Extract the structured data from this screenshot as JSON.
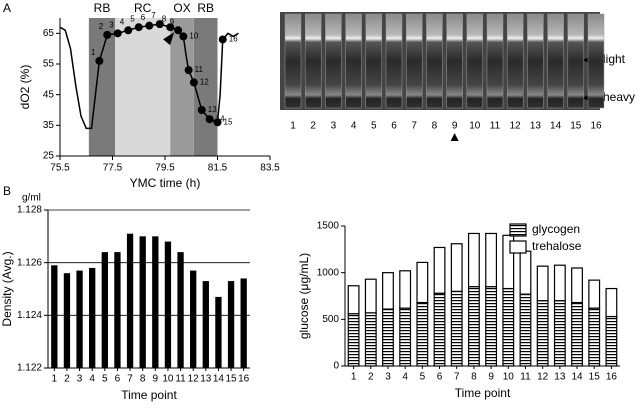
{
  "panel_labels": [
    "A",
    "B"
  ],
  "gel": {
    "lane_labels": [
      "1",
      "2",
      "3",
      "4",
      "5",
      "6",
      "7",
      "8",
      "9",
      "10",
      "11",
      "12",
      "13",
      "14",
      "15",
      "16"
    ],
    "light_label": "light",
    "heavy_label": "heavy"
  },
  "chart_data": [
    {
      "type": "line",
      "xlabel": "YMC time (h)",
      "ylabel": "dO2 (%)",
      "xlim": [
        75.5,
        83.5
      ],
      "ylim": [
        25,
        70
      ],
      "xticks": [
        75.5,
        77.5,
        79.5,
        81.5,
        83.5
      ],
      "yticks": [
        25,
        35,
        45,
        55,
        65
      ],
      "regions": [
        {
          "label": "RB",
          "start": 76.6,
          "end": 77.6,
          "color": "#7a7a7a"
        },
        {
          "label": "RC",
          "start": 77.6,
          "end": 79.7,
          "color": "#d9d9d9"
        },
        {
          "label": "OX",
          "start": 79.7,
          "end": 80.6,
          "color": "#9a9a9a"
        },
        {
          "label": "RB",
          "start": 80.6,
          "end": 81.5,
          "color": "#7a7a7a"
        }
      ],
      "series": [
        {
          "color": "#000000",
          "x": [
            75.5,
            75.7,
            75.9,
            76.1,
            76.3,
            76.5,
            76.7,
            76.85,
            77.0,
            77.3,
            77.7,
            78.1,
            78.5,
            78.9,
            79.3,
            79.7,
            80.0,
            80.2,
            80.3,
            80.4,
            80.6,
            80.9,
            81.2,
            81.5,
            81.6,
            81.7,
            81.9,
            82.1,
            82.3
          ],
          "values": [
            67,
            66,
            60,
            48,
            38,
            34,
            34,
            45,
            56,
            64.5,
            65,
            66,
            67,
            67.5,
            68,
            67,
            66,
            64,
            58,
            53,
            49,
            40,
            37,
            36,
            45,
            63,
            65,
            64,
            65
          ]
        },
        {
          "color": "#000000",
          "marker": "circle",
          "x": [
            77.0,
            77.3,
            77.7,
            78.1,
            78.5,
            78.9,
            79.3,
            79.7,
            80.0,
            80.2,
            80.4,
            80.6,
            80.9,
            81.2,
            81.5,
            81.7
          ],
          "values": [
            56,
            64.5,
            65,
            66,
            67,
            67.5,
            68,
            67,
            66,
            64,
            53,
            49,
            40,
            37,
            36,
            63
          ],
          "point_labels": [
            "1",
            "2",
            "3",
            "4",
            "5",
            "6",
            "7",
            "8",
            "9",
            "10",
            "11",
            "12",
            "13",
            "14",
            "15",
            "16"
          ]
        }
      ]
    },
    {
      "type": "bar",
      "xlabel": "Time point",
      "ylabel": "Density (Avg.)",
      "unit_label": "g/ml",
      "categories": [
        "1",
        "2",
        "3",
        "4",
        "5",
        "6",
        "7",
        "8",
        "9",
        "10",
        "11",
        "12",
        "13",
        "14",
        "15",
        "16"
      ],
      "ylim": [
        1.122,
        1.128
      ],
      "yticks": [
        1.122,
        1.124,
        1.126,
        1.128
      ],
      "grid": true,
      "series": [
        {
          "color": "#000000",
          "values": [
            1.1259,
            1.1256,
            1.1257,
            1.1258,
            1.1264,
            1.1264,
            1.1271,
            1.127,
            1.127,
            1.1268,
            1.1264,
            1.1257,
            1.1253,
            1.1247,
            1.1253,
            1.1254
          ]
        }
      ]
    },
    {
      "type": "bar",
      "stacked": true,
      "xlabel": "Time point",
      "ylabel": "glucose (μg/mL)",
      "legend": "upper right",
      "categories": [
        "1",
        "2",
        "3",
        "4",
        "5",
        "6",
        "7",
        "8",
        "9",
        "10",
        "11",
        "12",
        "13",
        "14",
        "15",
        "16"
      ],
      "ylim": [
        0,
        1500
      ],
      "yticks": [
        0,
        500,
        1000,
        1500
      ],
      "grid": false,
      "series": [
        {
          "name": "glycogen",
          "color": "#000000",
          "pattern": "horizontal-lines",
          "values": [
            560,
            570,
            610,
            620,
            680,
            780,
            800,
            850,
            850,
            830,
            770,
            700,
            700,
            680,
            620,
            530
          ]
        },
        {
          "name": "trehalose",
          "color": "#ffffff",
          "values": [
            300,
            360,
            390,
            400,
            430,
            490,
            510,
            570,
            570,
            570,
            460,
            370,
            380,
            370,
            300,
            300
          ]
        }
      ]
    }
  ]
}
